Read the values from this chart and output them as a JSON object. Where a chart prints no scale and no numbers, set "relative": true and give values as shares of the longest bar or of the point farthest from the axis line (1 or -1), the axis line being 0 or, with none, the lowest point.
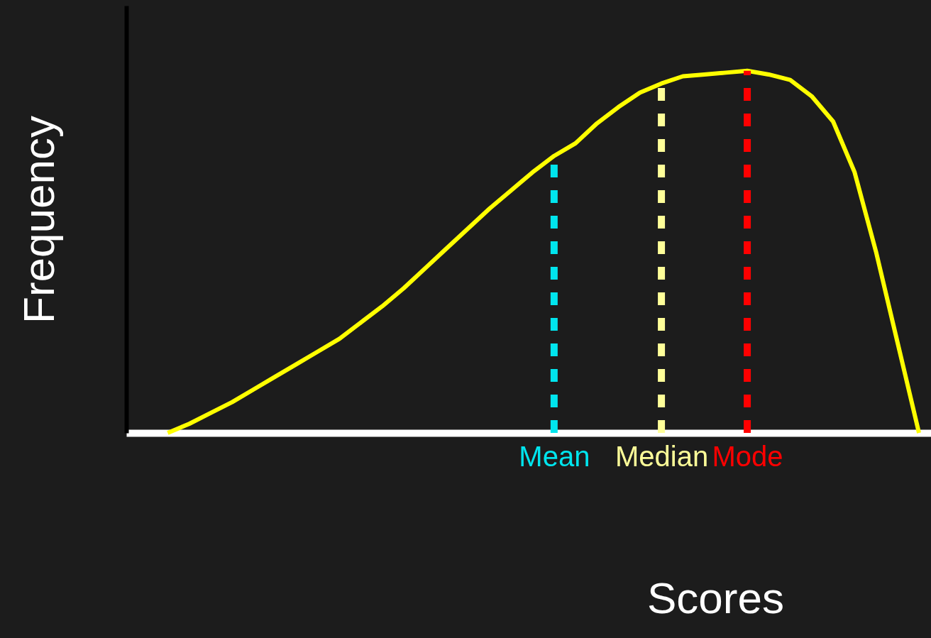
{
  "chart_data": {
    "type": "line",
    "relative": true,
    "xlabel": "Scores",
    "ylabel": "Frequency",
    "categories": [
      null,
      null,
      null,
      null,
      null,
      null,
      null,
      null,
      null,
      null,
      null,
      null,
      null,
      null,
      null,
      null,
      null,
      null,
      "Mean",
      null,
      null,
      null,
      null,
      "Median",
      null,
      null,
      null,
      "Mode",
      null,
      null,
      null,
      null,
      null,
      null,
      null,
      null
    ],
    "series": [
      {
        "color": "#ffff00",
        "values": [
          0,
          0.025,
          0.055,
          0.085,
          0.12,
          0.155,
          0.19,
          0.225,
          0.26,
          0.305,
          0.35,
          0.4,
          0.455,
          0.51,
          0.565,
          0.62,
          0.67,
          0.72,
          0.765,
          0.8,
          0.855,
          0.9,
          0.94,
          0.965,
          0.985,
          0.99,
          0.995,
          1,
          0.99,
          0.975,
          0.93,
          0.86,
          0.72,
          0.5,
          0.25,
          0
        ]
      }
    ],
    "ref_lines": [
      {
        "axis": "x",
        "value": "Mean",
        "color": "#00e5ee",
        "line_style": "dashed"
      },
      {
        "axis": "x",
        "value": "Median",
        "color": "#ffff99",
        "line_style": "dashed"
      },
      {
        "axis": "x",
        "value": "Mode",
        "color": "#ff0000",
        "line_style": "dashed"
      }
    ],
    "grid": false,
    "marker": "none",
    "line_style": "solid"
  }
}
